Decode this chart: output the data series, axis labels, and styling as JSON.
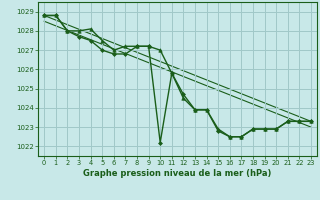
{
  "title": "Graphe pression niveau de la mer (hPa)",
  "bg_color": "#c8e8e8",
  "grid_color": "#a0c8c8",
  "line_color": "#1a5e1a",
  "xlim": [
    -0.5,
    23.5
  ],
  "ylim": [
    1021.5,
    1029.5
  ],
  "yticks": [
    1022,
    1023,
    1024,
    1025,
    1026,
    1027,
    1028,
    1029
  ],
  "xticks": [
    0,
    1,
    2,
    3,
    4,
    5,
    6,
    7,
    8,
    9,
    10,
    11,
    12,
    13,
    14,
    15,
    16,
    17,
    18,
    19,
    20,
    21,
    22,
    23
  ],
  "line1_x": [
    0,
    1,
    2,
    3,
    4,
    5,
    6,
    7,
    8,
    9,
    10,
    11,
    12,
    13,
    14,
    15,
    16,
    17,
    18,
    19,
    20,
    21,
    22,
    23
  ],
  "line1_y": [
    1028.8,
    1028.8,
    1028.0,
    1028.0,
    1028.1,
    1027.5,
    1027.0,
    1027.2,
    1027.2,
    1027.2,
    1027.0,
    1025.8,
    1024.5,
    1023.9,
    1023.9,
    1022.9,
    1022.5,
    1022.5,
    1022.9,
    1022.9,
    1022.9,
    1023.3,
    1023.3,
    1023.3
  ],
  "line2_x": [
    0,
    1,
    2,
    3,
    4,
    5,
    6,
    7,
    8,
    9,
    10,
    11,
    12,
    13,
    14,
    15,
    16,
    17,
    18,
    19,
    20,
    21,
    22,
    23
  ],
  "line2_y": [
    1028.8,
    1028.8,
    1028.0,
    1027.7,
    1027.5,
    1027.0,
    1026.8,
    1026.8,
    1027.2,
    1027.2,
    1022.2,
    1025.8,
    1024.7,
    1023.9,
    1023.9,
    1022.8,
    1022.5,
    1022.5,
    1022.9,
    1022.9,
    1022.9,
    1023.3,
    1023.3,
    1023.3
  ],
  "diag1": [
    1028.8,
    1023.3
  ],
  "diag2": [
    1028.5,
    1023.0
  ]
}
